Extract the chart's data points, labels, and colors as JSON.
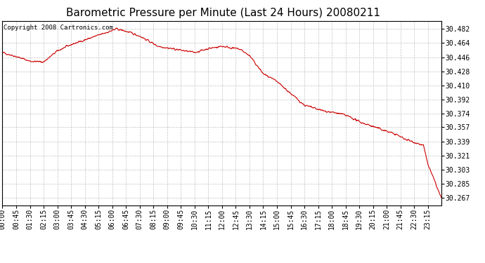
{
  "title": "Barometric Pressure per Minute (Last 24 Hours) 20080211",
  "copyright_text": "Copyright 2008 Cartronics.com",
  "line_color": "#cc0000",
  "background_color": "#ffffff",
  "plot_bg_color": "#ffffff",
  "grid_color": "#bbbbbb",
  "yticks": [
    30.267,
    30.285,
    30.303,
    30.321,
    30.339,
    30.357,
    30.374,
    30.392,
    30.41,
    30.428,
    30.446,
    30.464,
    30.482
  ],
  "ylim": [
    30.258,
    30.492
  ],
  "xtick_labels": [
    "00:00",
    "00:45",
    "01:30",
    "02:15",
    "03:00",
    "03:45",
    "04:30",
    "05:15",
    "06:00",
    "06:45",
    "07:30",
    "08:15",
    "09:00",
    "09:45",
    "10:30",
    "11:15",
    "12:00",
    "12:45",
    "13:30",
    "14:15",
    "15:00",
    "15:45",
    "16:30",
    "17:15",
    "18:00",
    "18:45",
    "19:30",
    "20:15",
    "21:00",
    "21:45",
    "22:30",
    "23:15"
  ],
  "title_fontsize": 11,
  "copyright_fontsize": 6.5,
  "tick_fontsize": 7,
  "control_minutes": [
    0,
    45,
    90,
    135,
    180,
    225,
    270,
    315,
    360,
    375,
    405,
    450,
    510,
    570,
    630,
    675,
    720,
    750,
    780,
    810,
    855,
    900,
    945,
    990,
    1050,
    1110,
    1140,
    1170,
    1200,
    1230,
    1260,
    1290,
    1320,
    1350,
    1380,
    1395,
    1439
  ],
  "control_values": [
    30.452,
    30.447,
    30.441,
    30.44,
    30.454,
    30.462,
    30.468,
    30.474,
    30.48,
    30.482,
    30.479,
    30.473,
    30.46,
    30.456,
    30.452,
    30.457,
    30.46,
    30.458,
    30.456,
    30.448,
    30.425,
    30.415,
    30.4,
    30.385,
    30.378,
    30.374,
    30.37,
    30.364,
    30.36,
    30.356,
    30.352,
    30.348,
    30.342,
    30.338,
    30.334,
    30.31,
    30.267
  ]
}
